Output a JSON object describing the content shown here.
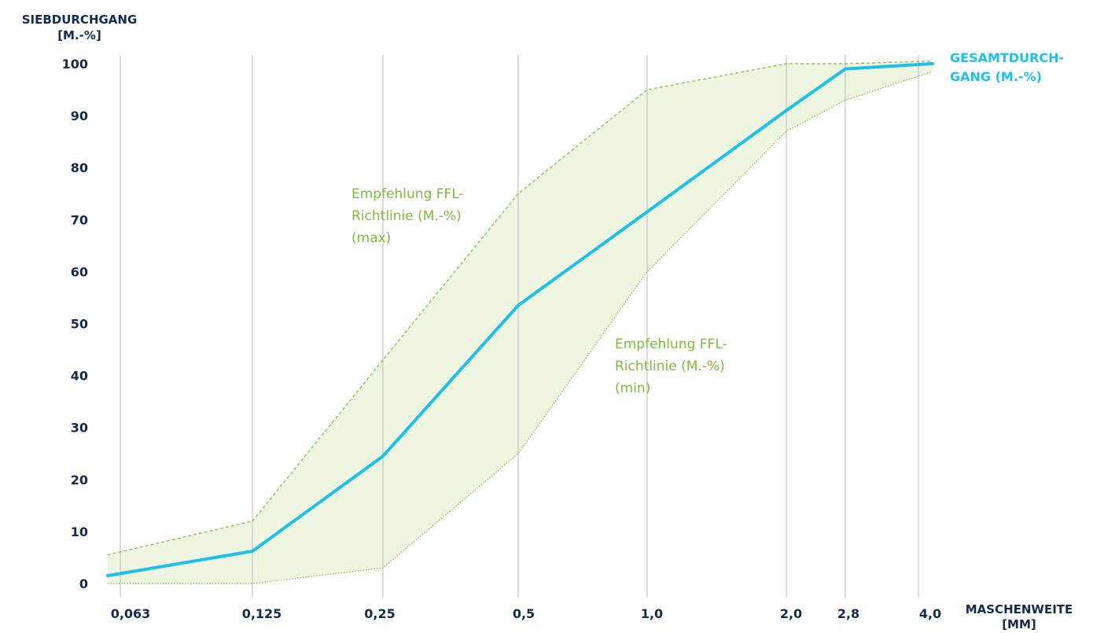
{
  "chart_data": {
    "type": "line",
    "ylabel": [
      "SIEBDURCHGANG",
      "[M.-%]"
    ],
    "xlabel": [
      "MASCHENWEITE",
      "[MM]"
    ],
    "ylim": [
      0,
      100
    ],
    "yticks": [
      "0",
      "10",
      "20",
      "30",
      "40",
      "50",
      "60",
      "70",
      "80",
      "90",
      "100"
    ],
    "categories": [
      "0,063",
      "0,125",
      "0,25",
      "0,5",
      "1,0",
      "2,0",
      "2,8",
      "4,0"
    ],
    "grid": "vertical",
    "series": [
      {
        "name": "GESAMTDURCH-GANG (M.-%)",
        "label_lines": [
          "GESAMTDURCH-",
          "GANG (M.-%)"
        ],
        "color": "#1ec0ea",
        "values": [
          1.5,
          6.2,
          24.5,
          53.5,
          71.5,
          91.0,
          99.0,
          100.0
        ]
      },
      {
        "name": "Empfehlung FFL-Richtlinie (M.-%) (max)",
        "label_lines": [
          "Empfehlung FFL-",
          "Richtlinie (M.-%)",
          "(max)"
        ],
        "color": "#7db942",
        "values": [
          5.5,
          12.0,
          43.0,
          75.0,
          95.0,
          100.0,
          100.0,
          100.5
        ]
      },
      {
        "name": "Empfehlung FFL-Richtlinie (M.-%) (min)",
        "label_lines": [
          "Empfehlung FFL-",
          "Richtlinie (M.-%)",
          "(min)"
        ],
        "color": "#7db942",
        "values": [
          0.0,
          0.0,
          3.0,
          25.0,
          60.0,
          87.0,
          93.0,
          98.5
        ]
      }
    ],
    "band_fill": "#eef6e2",
    "axis_text_color": "#152a4a"
  }
}
